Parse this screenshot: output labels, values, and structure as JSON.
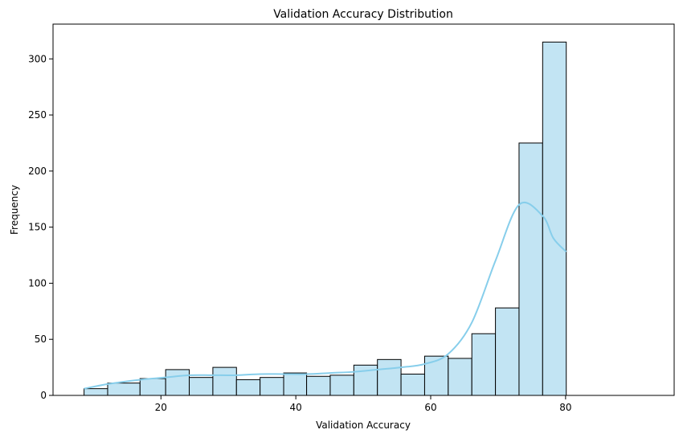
{
  "chart_data": {
    "type": "bar",
    "title": "Validation Accuracy Distribution",
    "xlabel": "Validation Accuracy",
    "ylabel": "Frequency",
    "xlim": [
      4.0,
      96.1
    ],
    "ylim": [
      0,
      331
    ],
    "xticks": [
      20,
      40,
      60,
      80
    ],
    "yticks": [
      0,
      50,
      100,
      150,
      200,
      250,
      300
    ],
    "grid": false,
    "legend": "none",
    "bins": [
      {
        "start": 8.6,
        "end": 12.1,
        "value": 6
      },
      {
        "start": 12.1,
        "end": 16.9,
        "value": 11
      },
      {
        "start": 16.9,
        "end": 20.7,
        "value": 15
      },
      {
        "start": 20.7,
        "end": 24.2,
        "value": 23
      },
      {
        "start": 24.2,
        "end": 27.7,
        "value": 16
      },
      {
        "start": 27.7,
        "end": 31.2,
        "value": 25
      },
      {
        "start": 31.2,
        "end": 34.7,
        "value": 14
      },
      {
        "start": 34.7,
        "end": 38.2,
        "value": 16
      },
      {
        "start": 38.2,
        "end": 41.6,
        "value": 20
      },
      {
        "start": 41.6,
        "end": 45.1,
        "value": 17
      },
      {
        "start": 45.1,
        "end": 48.6,
        "value": 18
      },
      {
        "start": 48.6,
        "end": 52.1,
        "value": 27
      },
      {
        "start": 52.1,
        "end": 55.6,
        "value": 32
      },
      {
        "start": 55.6,
        "end": 59.1,
        "value": 19
      },
      {
        "start": 59.1,
        "end": 62.6,
        "value": 35
      },
      {
        "start": 62.6,
        "end": 66.1,
        "value": 33
      },
      {
        "start": 66.1,
        "end": 69.6,
        "value": 55
      },
      {
        "start": 69.6,
        "end": 73.1,
        "value": 78
      },
      {
        "start": 73.1,
        "end": 76.6,
        "value": 225
      },
      {
        "start": 76.6,
        "end": 80.1,
        "value": 315
      }
    ],
    "kde": {
      "x": [
        8.6,
        12.0,
        16.9,
        20.7,
        24.2,
        27.7,
        31.2,
        34.7,
        38.2,
        41.6,
        45.1,
        48.6,
        52.1,
        55.6,
        59.1,
        62.6,
        66.1,
        69.6,
        73.1,
        76.6,
        78.2,
        80.1
      ],
      "y": [
        6,
        10,
        14,
        16,
        18,
        18,
        18,
        19,
        19,
        19,
        20,
        21,
        23,
        25,
        28,
        37,
        65,
        120,
        170,
        160,
        140,
        128
      ]
    },
    "colors": {
      "bar_fill": "#c2e4f3",
      "bar_edge": "#000000",
      "kde_line": "#87ceeb"
    }
  }
}
